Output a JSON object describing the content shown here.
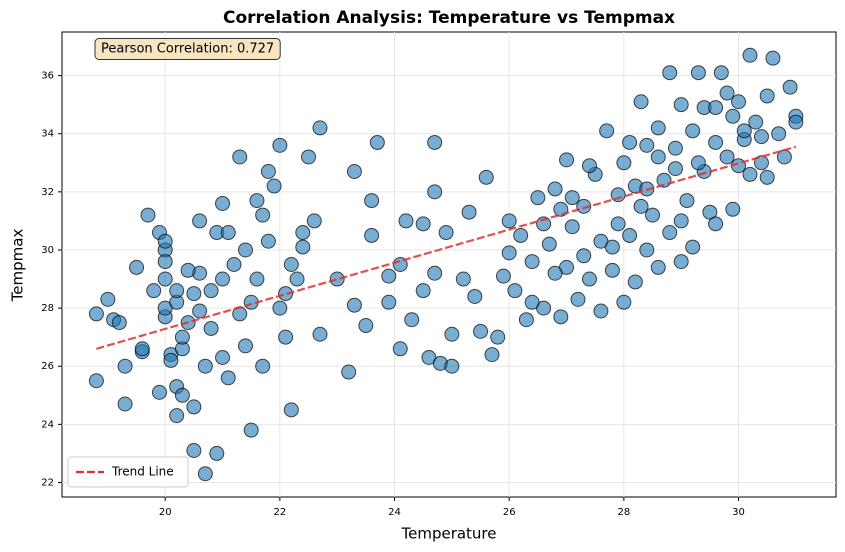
{
  "chart_data": {
    "type": "scatter",
    "title": "Correlation Analysis: Temperature vs Tempmax",
    "x_label": "Temperature",
    "y_label": "Tempmax",
    "annotation": "Pearson Correlation: 0.727",
    "color": "#1f77b4",
    "grid": true,
    "legend": "lower left",
    "xlim": [
      18.2,
      31.7
    ],
    "ylim": [
      21.5,
      37.5
    ],
    "xticks": [
      20,
      22,
      24,
      26,
      28,
      30
    ],
    "yticks": [
      22,
      24,
      26,
      28,
      30,
      32,
      34,
      36
    ],
    "trend_line": {
      "name": "Trend Line",
      "color": "#e03030",
      "x": [
        18.8,
        31.0
      ],
      "values": [
        26.6,
        33.55
      ]
    },
    "x": [
      18.8,
      18.8,
      19.0,
      19.1,
      19.2,
      19.3,
      19.3,
      19.6,
      19.6,
      19.7,
      19.8,
      19.9,
      20.0,
      20.0,
      20.1,
      20.0,
      20.0,
      20.3,
      19.9,
      20.0,
      20.0,
      20.2,
      20.2,
      20.1,
      20.2,
      20.2,
      20.3,
      20.3,
      20.4,
      20.5,
      20.5,
      20.5,
      20.6,
      20.6,
      20.7,
      20.7,
      20.8,
      20.9,
      20.9,
      21.0,
      21.0,
      21.1,
      21.1,
      21.3,
      21.3,
      21.4,
      21.5,
      21.6,
      21.6,
      21.7,
      21.7,
      21.8,
      21.9,
      22.0,
      22.0,
      22.1,
      22.2,
      22.2,
      22.5,
      22.7,
      22.6,
      22.7,
      22.4,
      22.3,
      21.5,
      21.2,
      20.8,
      21.8,
      22.1,
      19.5,
      20.6,
      21.4,
      22.4,
      21.0,
      20.4,
      23.2,
      23.3,
      23.6,
      23.3,
      23.6,
      23.7,
      23.9,
      24.1,
      24.1,
      24.3,
      24.5,
      24.5,
      24.6,
      24.7,
      24.7,
      24.8,
      24.9,
      25.0,
      25.0,
      25.2,
      25.4,
      25.5,
      25.6,
      25.7,
      23.0,
      23.5,
      24.2,
      24.7,
      25.3,
      23.9,
      25.8,
      25.9,
      26.0,
      26.1,
      26.2,
      26.3,
      26.4,
      26.5,
      26.6,
      26.7,
      26.8,
      26.9,
      27.0,
      27.0,
      27.1,
      27.2,
      27.3,
      27.4,
      27.5,
      27.6,
      27.6,
      27.7,
      27.8,
      27.9,
      28.0,
      28.0,
      28.1,
      28.2,
      28.2,
      28.3,
      28.4,
      28.4,
      28.5,
      28.6,
      28.6,
      28.7,
      28.8,
      28.8,
      28.9,
      29.0,
      29.0,
      29.1,
      29.2,
      29.2,
      29.3,
      29.4,
      29.4,
      29.5,
      29.6,
      29.6,
      29.7,
      29.8,
      29.9,
      29.9,
      30.0,
      30.0,
      30.1,
      30.2,
      30.2,
      30.3,
      30.4,
      30.5,
      30.5,
      30.6,
      30.7,
      30.8,
      30.9,
      31.0,
      31.0,
      30.4,
      29.8,
      29.3,
      28.9,
      28.3,
      27.9,
      27.3,
      26.8,
      26.4,
      26.0,
      27.1,
      28.6,
      29.6,
      30.1,
      28.1,
      27.4,
      26.9,
      29.0,
      28.4,
      27.8,
      26.6
    ],
    "values": [
      25.5,
      27.8,
      28.3,
      27.6,
      27.5,
      24.7,
      26.0,
      26.5,
      26.6,
      31.2,
      28.6,
      30.6,
      27.7,
      29.0,
      26.4,
      30.0,
      28.0,
      26.6,
      25.1,
      30.3,
      29.6,
      28.2,
      28.6,
      26.2,
      25.3,
      24.3,
      27.0,
      25.0,
      27.5,
      24.6,
      23.1,
      28.5,
      31.0,
      29.2,
      26.0,
      22.3,
      28.6,
      23.0,
      30.6,
      29.0,
      26.3,
      25.6,
      30.6,
      33.2,
      27.8,
      30.0,
      23.8,
      31.7,
      29.0,
      26.0,
      31.2,
      32.7,
      32.2,
      33.6,
      28.0,
      27.0,
      24.5,
      29.5,
      33.2,
      34.2,
      31.0,
      27.1,
      30.6,
      29.0,
      28.2,
      29.5,
      27.3,
      30.3,
      28.5,
      29.4,
      27.9,
      26.7,
      30.1,
      31.6,
      29.3,
      25.8,
      32.7,
      30.5,
      28.1,
      31.7,
      33.7,
      28.2,
      29.5,
      26.6,
      27.6,
      28.6,
      30.9,
      26.3,
      32.0,
      29.2,
      26.1,
      30.6,
      27.1,
      26.0,
      29.0,
      28.4,
      27.2,
      32.5,
      26.4,
      29.0,
      27.4,
      31.0,
      33.7,
      31.3,
      29.1,
      27.0,
      29.1,
      31.0,
      28.6,
      30.5,
      27.6,
      29.6,
      31.8,
      28.0,
      30.2,
      32.1,
      27.7,
      29.4,
      33.1,
      30.8,
      28.3,
      31.5,
      29.0,
      32.6,
      27.9,
      30.3,
      34.1,
      29.3,
      31.9,
      28.2,
      33.0,
      30.5,
      32.2,
      28.9,
      35.1,
      30.0,
      33.6,
      31.2,
      29.4,
      34.2,
      32.4,
      36.1,
      30.6,
      33.5,
      29.6,
      35.0,
      31.7,
      34.1,
      30.1,
      36.1,
      32.7,
      34.9,
      31.3,
      33.7,
      30.9,
      36.1,
      33.2,
      34.6,
      31.4,
      35.1,
      32.9,
      33.8,
      36.7,
      32.6,
      34.4,
      33.0,
      35.3,
      32.5,
      36.6,
      34.0,
      33.2,
      35.6,
      34.6,
      34.4,
      33.9,
      35.4,
      33.0,
      32.8,
      31.5,
      30.9,
      29.8,
      29.2,
      28.2,
      29.9,
      31.8,
      33.2,
      34.9,
      34.1,
      33.7,
      32.9,
      31.4,
      31.0,
      32.1,
      30.1,
      30.9
    ]
  }
}
